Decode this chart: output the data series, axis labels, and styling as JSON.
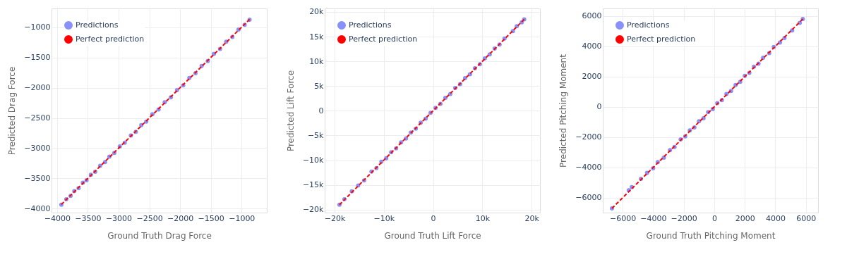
{
  "chart_data": [
    {
      "type": "scatter",
      "xlabel": "Ground Truth Drag Force",
      "ylabel": "Predicted Drag Force",
      "grid": true,
      "legend": "top left",
      "marker": "circle",
      "xlim": [
        -4090,
        -590
      ],
      "ylim": [
        -4065,
        -690
      ],
      "xticks": [
        {
          "value": -4000,
          "label": "−4000"
        },
        {
          "value": -3500,
          "label": "−3500"
        },
        {
          "value": -3000,
          "label": "−3000"
        },
        {
          "value": -2500,
          "label": "−2500"
        },
        {
          "value": -2000,
          "label": "−2000"
        },
        {
          "value": -1500,
          "label": "−1500"
        },
        {
          "value": -1000,
          "label": "−1000"
        }
      ],
      "yticks": [
        {
          "value": -4000,
          "label": "−4000"
        },
        {
          "value": -3500,
          "label": "−3500"
        },
        {
          "value": -3000,
          "label": "−3000"
        },
        {
          "value": -2500,
          "label": "−2500"
        },
        {
          "value": -2000,
          "label": "−2000"
        },
        {
          "value": -1500,
          "label": "−1500"
        },
        {
          "value": -1000,
          "label": "−1000"
        }
      ],
      "series": [
        {
          "name": "Predictions",
          "color": "#8890fa",
          "x": [
            -3930,
            -3850,
            -3780,
            -3720,
            -3650,
            -3580,
            -3520,
            -3450,
            -3380,
            -3300,
            -3220,
            -3150,
            -3070,
            -2980,
            -2900,
            -2800,
            -2720,
            -2630,
            -2550,
            -2450,
            -2350,
            -2250,
            -2150,
            -2050,
            -1950,
            -1850,
            -1750,
            -1650,
            -1550,
            -1450,
            -1350,
            -1250,
            -1150,
            -1050,
            -950,
            -870
          ],
          "values": [
            -3935,
            -3845,
            -3790,
            -3710,
            -3660,
            -3570,
            -3530,
            -3440,
            -3390,
            -3290,
            -3230,
            -3140,
            -3080,
            -2970,
            -2910,
            -2790,
            -2730,
            -2620,
            -2560,
            -2440,
            -2360,
            -2240,
            -2160,
            -2040,
            -1960,
            -1840,
            -1760,
            -1640,
            -1560,
            -1440,
            -1360,
            -1240,
            -1160,
            -1040,
            -960,
            -875
          ]
        },
        {
          "name": "Perfect prediction",
          "type": "line",
          "color": "#ff0000",
          "line_style": "dashed",
          "marker": "none",
          "x": [
            -3930,
            -870
          ],
          "values": [
            -3930,
            -870
          ]
        }
      ]
    },
    {
      "type": "scatter",
      "xlabel": "Ground Truth Lift Force",
      "ylabel": "Predicted Lift Force",
      "grid": true,
      "legend": "top left",
      "marker": "circle",
      "xlim": [
        -22000,
        21700
      ],
      "ylim": [
        -20600,
        20700
      ],
      "xticks": [
        {
          "value": -20000,
          "label": "−20k"
        },
        {
          "value": -10000,
          "label": "−10k"
        },
        0,
        {
          "value": 10000,
          "label": "10k"
        },
        {
          "value": 20000,
          "label": "20k"
        }
      ],
      "yticks": [
        {
          "value": -20000,
          "label": "−20k"
        },
        {
          "value": -15000,
          "label": "−15k"
        },
        {
          "value": -10000,
          "label": "−10k"
        },
        {
          "value": -5000,
          "label": "−5k"
        },
        0,
        {
          "value": 5000,
          "label": "5k"
        },
        {
          "value": 10000,
          "label": "10k"
        },
        {
          "value": 15000,
          "label": "15k"
        },
        {
          "value": 20000,
          "label": "20k"
        }
      ],
      "series": [
        {
          "name": "Predictions",
          "color": "#8890fa",
          "x": [
            -19000,
            -18000,
            -16500,
            -15200,
            -14000,
            -12500,
            -11500,
            -10500,
            -9500,
            -8500,
            -7500,
            -6500,
            -5500,
            -4500,
            -3500,
            -2500,
            -1500,
            -500,
            500,
            1500,
            2500,
            3500,
            4500,
            5500,
            6500,
            7500,
            8500,
            9500,
            10500,
            11500,
            12500,
            13500,
            14500,
            16200,
            17000,
            18000,
            18500
          ],
          "values": [
            -19000,
            -17900,
            -16300,
            -15100,
            -14100,
            -12300,
            -11600,
            -10300,
            -9600,
            -8400,
            -7600,
            -6400,
            -5600,
            -4400,
            -3600,
            -2400,
            -1600,
            -400,
            600,
            1400,
            2600,
            3400,
            4600,
            5400,
            6600,
            7400,
            8600,
            9400,
            10600,
            11400,
            12600,
            13400,
            14600,
            16100,
            17100,
            17900,
            18500
          ]
        },
        {
          "name": "Perfect prediction",
          "type": "line",
          "color": "#ff0000",
          "line_style": "dashed",
          "marker": "none",
          "x": [
            -19000,
            18500
          ],
          "values": [
            -19000,
            18500
          ]
        }
      ]
    },
    {
      "type": "scatter",
      "xlabel": "Ground Truth Pitching Moment",
      "ylabel": "Predicted Pitching Moment",
      "grid": true,
      "legend": "top left",
      "marker": "circle",
      "xlim": [
        -7300,
        6800
      ],
      "ylim": [
        -6980,
        6500
      ],
      "xticks": [
        {
          "value": -6000,
          "label": "−6000"
        },
        {
          "value": -4000,
          "label": "−4000"
        },
        {
          "value": -2000,
          "label": "−2000"
        },
        0,
        2000,
        4000,
        6000
      ],
      "yticks": [
        {
          "value": -6000,
          "label": "−6000"
        },
        {
          "value": -4000,
          "label": "−4000"
        },
        {
          "value": -2000,
          "label": "−2000"
        },
        0,
        2000,
        4000,
        6000
      ],
      "series": [
        {
          "name": "Predictions",
          "color": "#8890fa",
          "x": [
            -6700,
            -5600,
            -5400,
            -4800,
            -4400,
            -4000,
            -3700,
            -3300,
            -2900,
            -2600,
            -2200,
            -1900,
            -1600,
            -1300,
            -1000,
            -700,
            -400,
            -100,
            200,
            500,
            800,
            1100,
            1400,
            1700,
            2000,
            2300,
            2600,
            2900,
            3200,
            3600,
            3900,
            4300,
            4600,
            5100,
            5600,
            5800
          ],
          "values": [
            -6700,
            -5500,
            -5300,
            -4750,
            -4350,
            -4050,
            -3650,
            -3350,
            -2850,
            -2650,
            -2150,
            -1950,
            -1550,
            -1350,
            -950,
            -750,
            -350,
            -150,
            250,
            450,
            850,
            1050,
            1450,
            1650,
            2050,
            2250,
            2650,
            2850,
            3250,
            3550,
            3950,
            4250,
            4550,
            5050,
            5550,
            5800
          ]
        },
        {
          "name": "Perfect prediction",
          "type": "line",
          "color": "#ff0000",
          "line_style": "dashed",
          "marker": "none",
          "x": [
            -6700,
            5800
          ],
          "values": [
            -6700,
            5800
          ]
        }
      ]
    }
  ]
}
